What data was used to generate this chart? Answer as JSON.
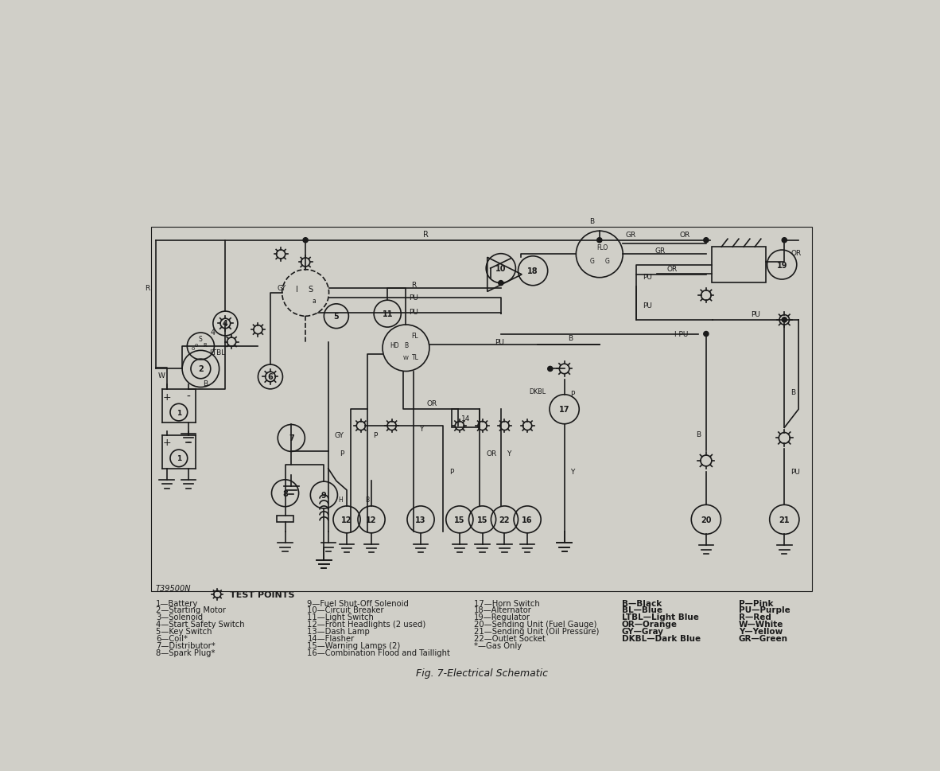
{
  "title": "Fig. 7-Electrical Schematic",
  "bg_color": "#d0cfc8",
  "line_color": "#1a1a1a",
  "legend_col1": [
    "1—Battery",
    "2—Starting Motor",
    "3—Solenoid",
    "4—Start Safety Switch",
    "5—Key Switch",
    "6—Coil*",
    "7—Distributor*",
    "8—Spark Plug*"
  ],
  "legend_col2": [
    "9—Fuel Shut-Off Solenoid",
    "10—Circuit Breaker",
    "11—Light Switch",
    "12—Front Headlights (2 used)",
    "13—Dash Lamp",
    "14—Flasher",
    "15—Warning Lamps (2)",
    "16—Combination Flood and Taillight"
  ],
  "legend_col3": [
    "17—Horn Switch",
    "18—Alternator",
    "19—Regulator",
    "20—Sending Unit (Fuel Gauge)",
    "21—Sending Unit (Oil Pressure)",
    "22—Outlet Socket",
    "*—Gas Only",
    ""
  ],
  "legend_col4": [
    "B—Black",
    "BL—Blue",
    "LTBL—Light Blue",
    "OR—Orange",
    "GY—Gray",
    "DKBL—Dark Blue",
    "",
    ""
  ],
  "legend_col5": [
    "P—Pink",
    "PU—Purple",
    "R—Red",
    "W—White",
    "Y—Yellow",
    "GR—Green",
    "",
    ""
  ],
  "part_number": "T39500N"
}
